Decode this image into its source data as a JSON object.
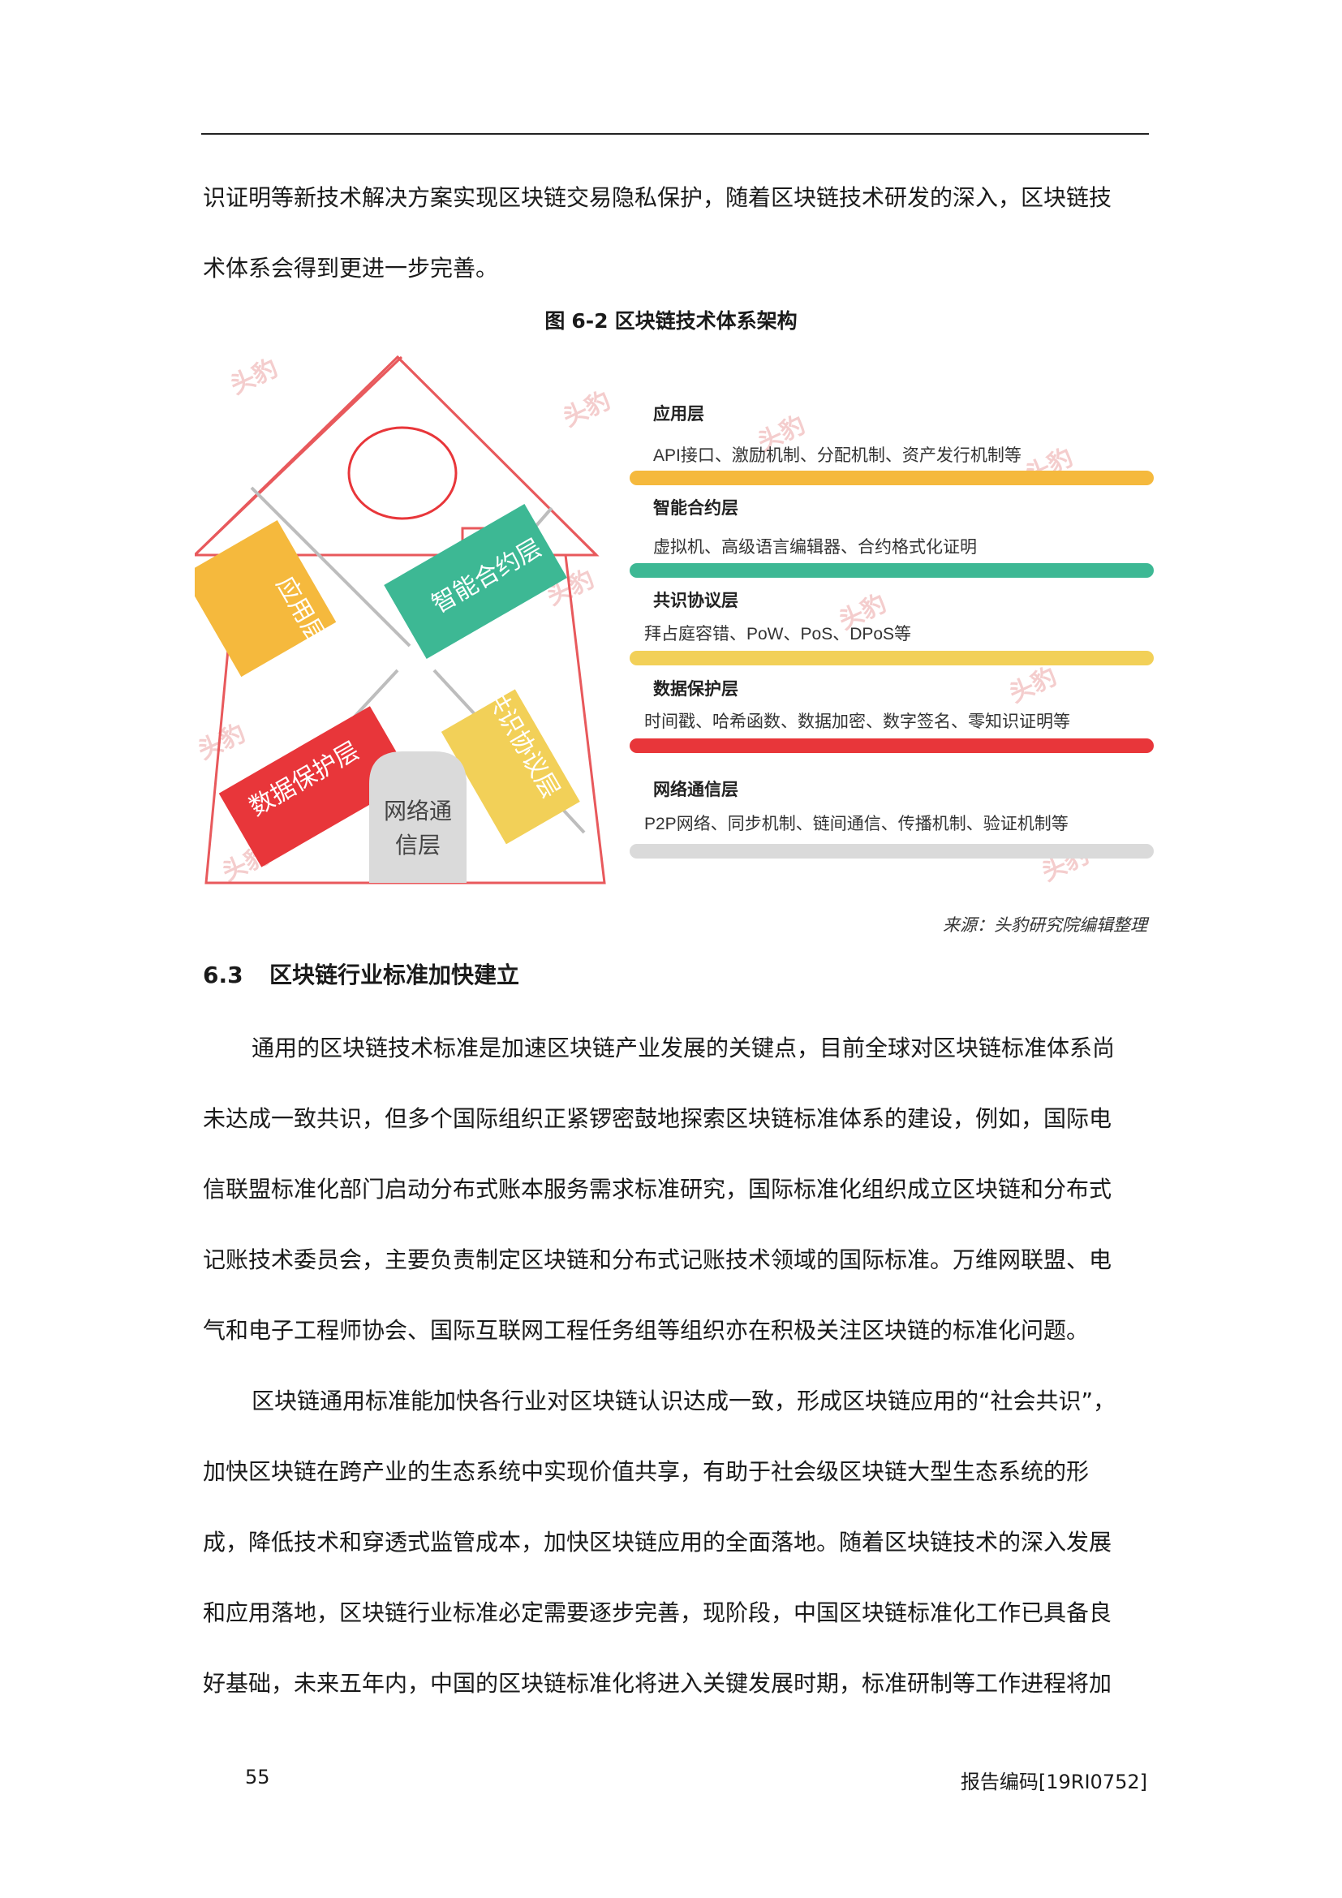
{
  "intro_lines": [
    "识证明等新技术解决方案实现区块链交易隐私保护，随着区块链技术研发的深入，区块链技",
    "术体系会得到更进一步完善。"
  ],
  "figure": {
    "label": "图",
    "number": "6-2",
    "title": "区块链技术体系架构",
    "pyramid_labels": [
      "应用层",
      "智能合约层",
      "数据保护层",
      "共识协议层",
      "网络通",
      "信层"
    ],
    "watermark_text": "头豹",
    "layers": [
      {
        "name": "应用层",
        "desc": "API接口、激励机制、分配机制、资产发行机制等",
        "color": "#f5b93d"
      },
      {
        "name": "智能合约层",
        "desc": "虚拟机、高级语言编辑器、合约格式化证明",
        "color": "#3db894"
      },
      {
        "name": "共识协议层",
        "desc": "拜占庭容错、PoW、PoS、DPoS等",
        "color": "#f2d058"
      },
      {
        "name": "数据保护层",
        "desc": "时间戳、哈希函数、数据加密、数字签名、零知识证明等",
        "color": "#e8363a"
      },
      {
        "name": "网络通信层",
        "desc": "P2P网络、同步机制、链间通信、传播机制、验证机制等",
        "color": "#dadada"
      }
    ],
    "source": "来源：头豹研究院编辑整理"
  },
  "section": {
    "number": "6.3",
    "title": "区块链行业标准加快建立"
  },
  "para1_lines": [
    "通用的区块链技术标准是加速区块链产业发展的关键点，目前全球对区块链标准体系尚",
    "未达成一致共识，但多个国际组织正紧锣密鼓地探索区块链标准体系的建设，例如，国际电",
    "信联盟标准化部门启动分布式账本服务需求标准研究，国际标准化组织成立区块链和分布式",
    "记账技术委员会，主要负责制定区块链和分布式记账技术领域的国际标准。万维网联盟、电",
    "气和电子工程师协会、国际互联网工程任务组等组织亦在积极关注区块链的标准化问题。"
  ],
  "para2_lines": [
    "区块链通用标准能加快各行业对区块链认识达成一致，形成区块链应用的“社会共识”，",
    "加快区块链在跨产业的生态系统中实现价值共享，有助于社会级区块链大型生态系统的形",
    "成，降低技术和穿透式监管成本，加快区块链应用的全面落地。随着区块链技术的深入发展",
    "和应用落地，区块链行业标准必定需要逐步完善，现阶段，中国区块链标准化工作已具备良",
    "好基础，未来五年内，中国的区块链标准化将进入关键发展时期，标准研制等工作进程将加"
  ],
  "footer": {
    "page": "55",
    "code": "报告编码[19RI0752]"
  }
}
